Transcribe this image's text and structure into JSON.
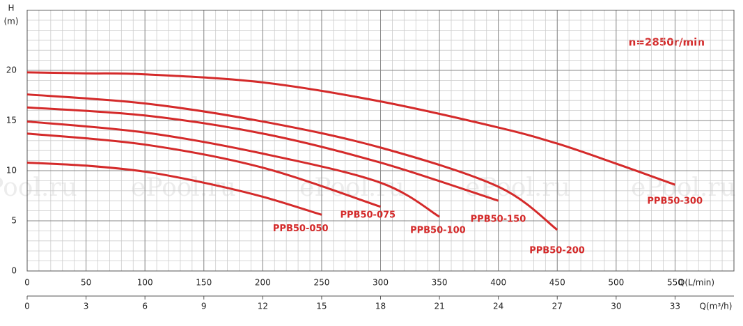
{
  "chart_data": {
    "type": "line",
    "y_label": "H",
    "y_unit": "(m)",
    "x_label": "Q(L/min)",
    "x2_label": "Q(m³/h)",
    "annotation": "n=2850r/min",
    "watermark": "ePool.ru",
    "xlim": [
      0,
      600
    ],
    "xticks": [
      0,
      50,
      100,
      150,
      200,
      250,
      300,
      350,
      400,
      450,
      500,
      550
    ],
    "x2lim": [
      0,
      36
    ],
    "x2ticks": [
      0,
      3,
      6,
      9,
      12,
      15,
      18,
      21,
      24,
      27,
      30,
      33
    ],
    "ylim": [
      0,
      26
    ],
    "yticks": [
      0,
      5,
      10,
      15,
      20
    ],
    "grid": true,
    "color": "#d42a2a",
    "series": [
      {
        "name": "PPB50-050",
        "color": "#d42a2a",
        "x": [
          0,
          50,
          100,
          150,
          200,
          250
        ],
        "values": [
          10.8,
          10.5,
          9.9,
          8.8,
          7.4,
          5.6
        ]
      },
      {
        "name": "PPB50-075",
        "color": "#d42a2a",
        "x": [
          0,
          100,
          200,
          300
        ],
        "values": [
          13.7,
          12.6,
          10.3,
          6.4
        ]
      },
      {
        "name": "PPB50-100",
        "color": "#d42a2a",
        "x": [
          0,
          100,
          200,
          300,
          350
        ],
        "values": [
          14.9,
          13.8,
          11.7,
          8.8,
          5.4
        ]
      },
      {
        "name": "PPB50-150",
        "color": "#d42a2a",
        "x": [
          0,
          100,
          200,
          300,
          400
        ],
        "values": [
          16.3,
          15.5,
          13.7,
          10.8,
          7.0
        ]
      },
      {
        "name": "PPB50-200",
        "color": "#d42a2a",
        "x": [
          0,
          100,
          200,
          300,
          400,
          450
        ],
        "values": [
          17.6,
          16.7,
          14.9,
          12.3,
          8.4,
          4.1
        ]
      },
      {
        "name": "PPB50-300",
        "color": "#d42a2a",
        "x": [
          0,
          50,
          100,
          200,
          300,
          400,
          450,
          500,
          550
        ],
        "values": [
          19.8,
          19.7,
          19.6,
          18.8,
          16.9,
          14.3,
          12.7,
          10.7,
          8.6
        ]
      }
    ]
  }
}
